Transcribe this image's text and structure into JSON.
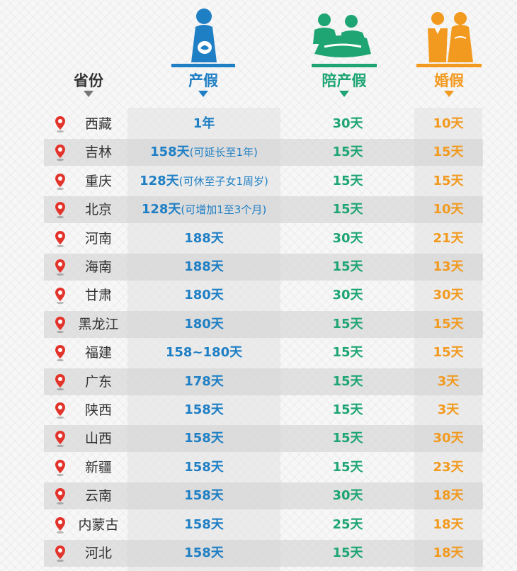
{
  "header": {
    "province_label": "省份",
    "maternity_label": "产假",
    "paternity_label": "陪产假",
    "marriage_label": "婚假"
  },
  "colors": {
    "maternity": "#1f7fc4",
    "paternity": "#1ea573",
    "marriage": "#f29a1f",
    "pin": "#e2342b"
  },
  "rows": [
    {
      "province": "西藏",
      "maternity": "1年",
      "maternity_note": "",
      "paternity": "30天",
      "marriage": "10天"
    },
    {
      "province": "吉林",
      "maternity": "158天",
      "maternity_note": "(可延长至1年)",
      "paternity": "15天",
      "marriage": "15天"
    },
    {
      "province": "重庆",
      "maternity": "128天",
      "maternity_note": "(可休至子女1周岁)",
      "paternity": "15天",
      "marriage": "15天"
    },
    {
      "province": "北京",
      "maternity": "128天",
      "maternity_note": "(可增加1至3个月)",
      "paternity": "15天",
      "marriage": "10天"
    },
    {
      "province": "河南",
      "maternity": "188天",
      "maternity_note": "",
      "paternity": "30天",
      "marriage": "21天"
    },
    {
      "province": "海南",
      "maternity": "188天",
      "maternity_note": "",
      "paternity": "15天",
      "marriage": "13天"
    },
    {
      "province": "甘肃",
      "maternity": "180天",
      "maternity_note": "",
      "paternity": "30天",
      "marriage": "30天"
    },
    {
      "province": "黑龙江",
      "maternity": "180天",
      "maternity_note": "",
      "paternity": "15天",
      "marriage": "15天"
    },
    {
      "province": "福建",
      "maternity": "158~180天",
      "maternity_note": "",
      "paternity": "15天",
      "marriage": "15天"
    },
    {
      "province": "广东",
      "maternity": "178天",
      "maternity_note": "",
      "paternity": "15天",
      "marriage": "3天"
    },
    {
      "province": "陕西",
      "maternity": "158天",
      "maternity_note": "",
      "paternity": "15天",
      "marriage": "3天"
    },
    {
      "province": "山西",
      "maternity": "158天",
      "maternity_note": "",
      "paternity": "15天",
      "marriage": "30天"
    },
    {
      "province": "新疆",
      "maternity": "158天",
      "maternity_note": "",
      "paternity": "15天",
      "marriage": "23天"
    },
    {
      "province": "云南",
      "maternity": "158天",
      "maternity_note": "",
      "paternity": "30天",
      "marriage": "18天"
    },
    {
      "province": "内蒙古",
      "maternity": "158天",
      "maternity_note": "",
      "paternity": "25天",
      "marriage": "18天"
    },
    {
      "province": "河北",
      "maternity": "158天",
      "maternity_note": "",
      "paternity": "15天",
      "marriage": "18天"
    }
  ]
}
